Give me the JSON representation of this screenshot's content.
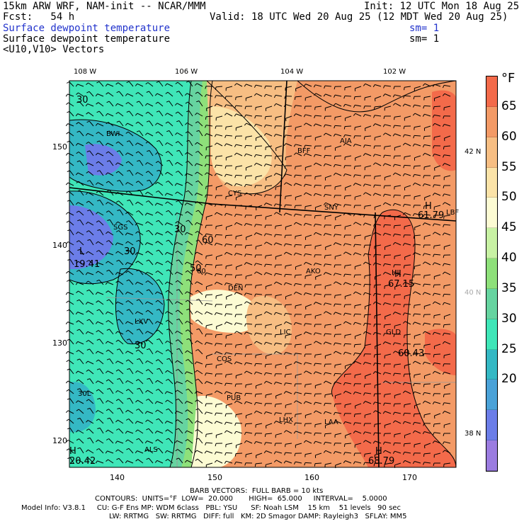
{
  "header": {
    "model": "15km ARW WRF, NAM-init -- NCAR/MMM",
    "init": "Init: 12 UTC Mon 18 Aug 25",
    "fcst": "Fcst:   54 h",
    "valid": "Valid: 18 UTC Wed 20 Aug 25 (12 MDT Wed 20 Aug 25)",
    "field1": "Surface dewpoint temperature",
    "field1_sm": "sm= 1",
    "field2": "Surface dewpoint temperature",
    "field2_sm": "sm= 1",
    "field3": "<U10,V10> Vectors"
  },
  "map": {
    "top_lon_labels": [
      "108 W",
      "106 W",
      "104 W",
      "102 W"
    ],
    "left_y_ticks": [
      "150",
      "140",
      "130",
      "120"
    ],
    "bottom_x_ticks": [
      "140",
      "150",
      "160",
      "170"
    ],
    "right_lat_labels": [
      "42 N",
      "40 N",
      "38 N"
    ],
    "stations": [
      "BWI",
      "SGS",
      "CYS",
      "BFF",
      "AIA",
      "SNY",
      "AKO",
      "DEN",
      "LIC",
      "COS",
      "PUB",
      "LHX",
      "LAA",
      "GLD",
      "LXV",
      "ALS",
      "30L",
      "HJ",
      "LBF"
    ],
    "contour_labels": [
      "30",
      "30",
      "30",
      "30",
      "60",
      "50",
      "60"
    ],
    "extrema_labels": [
      "L",
      "19.41",
      "H",
      "61.79",
      "H",
      "67.15",
      "60.43",
      "H",
      "68.79",
      "H",
      "20.42"
    ]
  },
  "colorbar": {
    "unit": "°F",
    "labels": [
      "65",
      "60",
      "55",
      "50",
      "45",
      "40",
      "35",
      "30",
      "25",
      "20"
    ],
    "colors": [
      "#f36a4a",
      "#f39a66",
      "#f7be83",
      "#fbe3a8",
      "#fcfbd3",
      "#c8f2a4",
      "#8ee07a",
      "#66d4a0",
      "#3fe6b8",
      "#34b8c4",
      "#4aa2d8",
      "#6b7de8",
      "#9b7ce0"
    ]
  },
  "footer": {
    "barb": "BARB VECTORS:  FULL BARB = 10 kts",
    "contours": "CONTOURS:  UNITS=°F  LOW=  20.000       HIGH=  65.000     INTERVAL=    5.0000",
    "model_info": "Model Info: V3.8.1     CU: G-F Ens MP: WDM 6class   PBL: YSU      SF: Noah LSM    15 km    51 levels   90 sec",
    "model_info2": "LW: RRTMG   SW: RRTMG   DIFF: full   KM: 2D Smagor DAMP: Rayleigh3   SFLAY: MM5"
  }
}
